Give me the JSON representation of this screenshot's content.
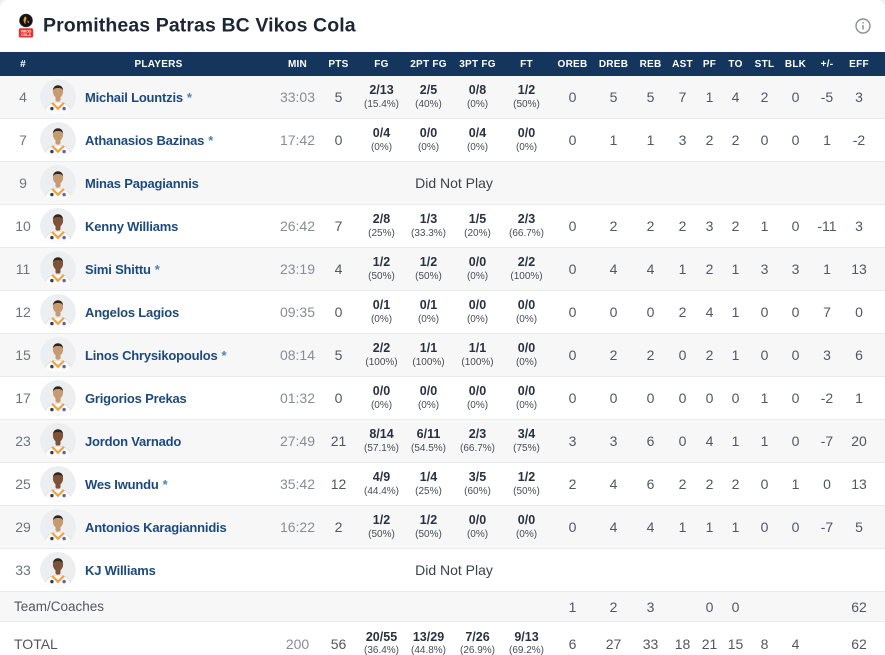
{
  "header": {
    "team_name": "Promitheas Patras BC Vikos Cola",
    "logo_text_line1": "VIKOS",
    "logo_text_line2": "COLA",
    "info_icon": "info-icon"
  },
  "colors": {
    "header_navy": "#15365c",
    "title_text": "#1e2636",
    "player_link": "#1d4a7d",
    "starter_mark": "#4d82b8",
    "stat_gray": "#52575f",
    "fraction_dark": "#2a3140",
    "alt_row_bg": "#f7f7f8",
    "row_border": "#e9eaec",
    "logo_red": "#e6342e",
    "logo_flame_orange": "#f29a1f"
  },
  "table": {
    "columns": [
      "#",
      "PLAYERS",
      "MIN",
      "PTS",
      "FG",
      "2PT FG",
      "3PT FG",
      "FT",
      "OREB",
      "DREB",
      "REB",
      "AST",
      "PF",
      "TO",
      "STL",
      "BLK",
      "+/-",
      "EFF"
    ],
    "did_not_play_label": "Did Not Play",
    "players": [
      {
        "number": "4",
        "name": "Michail Lountzis",
        "star": "*",
        "skin": "#c79b72",
        "dnp": false,
        "min": "33:03",
        "pts": "5",
        "fg": "2/13",
        "fg_pct": "(15.4%)",
        "p2": "2/5",
        "p2_pct": "(40%)",
        "p3": "0/8",
        "p3_pct": "(0%)",
        "ft": "1/2",
        "ft_pct": "(50%)",
        "oreb": "0",
        "dreb": "5",
        "reb": "5",
        "ast": "7",
        "pf": "1",
        "to": "4",
        "stl": "2",
        "blk": "0",
        "pm": "-5",
        "eff": "3"
      },
      {
        "number": "7",
        "name": "Athanasios Bazinas",
        "star": "*",
        "skin": "#c79b72",
        "dnp": false,
        "min": "17:42",
        "pts": "0",
        "fg": "0/4",
        "fg_pct": "(0%)",
        "p2": "0/0",
        "p2_pct": "(0%)",
        "p3": "0/4",
        "p3_pct": "(0%)",
        "ft": "0/0",
        "ft_pct": "(0%)",
        "oreb": "0",
        "dreb": "1",
        "reb": "1",
        "ast": "3",
        "pf": "2",
        "to": "2",
        "stl": "0",
        "blk": "0",
        "pm": "1",
        "eff": "-2"
      },
      {
        "number": "9",
        "name": "Minas Papagiannis",
        "star": "",
        "skin": "#c79b72",
        "dnp": true,
        "min": "",
        "pts": "",
        "fg": "",
        "fg_pct": "",
        "p2": "",
        "p2_pct": "",
        "p3": "",
        "p3_pct": "",
        "ft": "",
        "ft_pct": "",
        "oreb": "",
        "dreb": "",
        "reb": "",
        "ast": "",
        "pf": "",
        "to": "",
        "stl": "",
        "blk": "",
        "pm": "",
        "eff": ""
      },
      {
        "number": "10",
        "name": "Kenny Williams",
        "star": "",
        "skin": "#7d5236",
        "dnp": false,
        "min": "26:42",
        "pts": "7",
        "fg": "2/8",
        "fg_pct": "(25%)",
        "p2": "1/3",
        "p2_pct": "(33.3%)",
        "p3": "1/5",
        "p3_pct": "(20%)",
        "ft": "2/3",
        "ft_pct": "(66.7%)",
        "oreb": "0",
        "dreb": "2",
        "reb": "2",
        "ast": "2",
        "pf": "3",
        "to": "2",
        "stl": "1",
        "blk": "0",
        "pm": "-11",
        "eff": "3"
      },
      {
        "number": "11",
        "name": "Simi Shittu",
        "star": "*",
        "skin": "#7d5236",
        "dnp": false,
        "min": "23:19",
        "pts": "4",
        "fg": "1/2",
        "fg_pct": "(50%)",
        "p2": "1/2",
        "p2_pct": "(50%)",
        "p3": "0/0",
        "p3_pct": "(0%)",
        "ft": "2/2",
        "ft_pct": "(100%)",
        "oreb": "0",
        "dreb": "4",
        "reb": "4",
        "ast": "1",
        "pf": "2",
        "to": "1",
        "stl": "3",
        "blk": "3",
        "pm": "1",
        "eff": "13"
      },
      {
        "number": "12",
        "name": "Angelos Lagios",
        "star": "",
        "skin": "#c79b72",
        "dnp": false,
        "min": "09:35",
        "pts": "0",
        "fg": "0/1",
        "fg_pct": "(0%)",
        "p2": "0/1",
        "p2_pct": "(0%)",
        "p3": "0/0",
        "p3_pct": "(0%)",
        "ft": "0/0",
        "ft_pct": "(0%)",
        "oreb": "0",
        "dreb": "0",
        "reb": "0",
        "ast": "2",
        "pf": "4",
        "to": "1",
        "stl": "0",
        "blk": "0",
        "pm": "7",
        "eff": "0"
      },
      {
        "number": "15",
        "name": "Linos Chrysikopoulos",
        "star": "*",
        "skin": "#c79b72",
        "dnp": false,
        "min": "08:14",
        "pts": "5",
        "fg": "2/2",
        "fg_pct": "(100%)",
        "p2": "1/1",
        "p2_pct": "(100%)",
        "p3": "1/1",
        "p3_pct": "(100%)",
        "ft": "0/0",
        "ft_pct": "(0%)",
        "oreb": "0",
        "dreb": "2",
        "reb": "2",
        "ast": "0",
        "pf": "2",
        "to": "1",
        "stl": "0",
        "blk": "0",
        "pm": "3",
        "eff": "6"
      },
      {
        "number": "17",
        "name": "Grigorios Prekas",
        "star": "",
        "skin": "#c79b72",
        "dnp": false,
        "min": "01:32",
        "pts": "0",
        "fg": "0/0",
        "fg_pct": "(0%)",
        "p2": "0/0",
        "p2_pct": "(0%)",
        "p3": "0/0",
        "p3_pct": "(0%)",
        "ft": "0/0",
        "ft_pct": "(0%)",
        "oreb": "0",
        "dreb": "0",
        "reb": "0",
        "ast": "0",
        "pf": "0",
        "to": "0",
        "stl": "1",
        "blk": "0",
        "pm": "-2",
        "eff": "1"
      },
      {
        "number": "23",
        "name": "Jordon Varnado",
        "star": "",
        "skin": "#7d5236",
        "dnp": false,
        "min": "27:49",
        "pts": "21",
        "fg": "8/14",
        "fg_pct": "(57.1%)",
        "p2": "6/11",
        "p2_pct": "(54.5%)",
        "p3": "2/3",
        "p3_pct": "(66.7%)",
        "ft": "3/4",
        "ft_pct": "(75%)",
        "oreb": "3",
        "dreb": "3",
        "reb": "6",
        "ast": "0",
        "pf": "4",
        "to": "1",
        "stl": "1",
        "blk": "0",
        "pm": "-7",
        "eff": "20"
      },
      {
        "number": "25",
        "name": "Wes Iwundu",
        "star": "*",
        "skin": "#7d5236",
        "dnp": false,
        "min": "35:42",
        "pts": "12",
        "fg": "4/9",
        "fg_pct": "(44.4%)",
        "p2": "1/4",
        "p2_pct": "(25%)",
        "p3": "3/5",
        "p3_pct": "(60%)",
        "ft": "1/2",
        "ft_pct": "(50%)",
        "oreb": "2",
        "dreb": "4",
        "reb": "6",
        "ast": "2",
        "pf": "2",
        "to": "2",
        "stl": "0",
        "blk": "1",
        "pm": "0",
        "eff": "13"
      },
      {
        "number": "29",
        "name": "Antonios Karagiannidis",
        "star": "",
        "skin": "#c79b72",
        "dnp": false,
        "min": "16:22",
        "pts": "2",
        "fg": "1/2",
        "fg_pct": "(50%)",
        "p2": "1/2",
        "p2_pct": "(50%)",
        "p3": "0/0",
        "p3_pct": "(0%)",
        "ft": "0/0",
        "ft_pct": "(0%)",
        "oreb": "0",
        "dreb": "4",
        "reb": "4",
        "ast": "1",
        "pf": "1",
        "to": "1",
        "stl": "0",
        "blk": "0",
        "pm": "-7",
        "eff": "5"
      },
      {
        "number": "33",
        "name": "KJ Williams",
        "star": "",
        "skin": "#7d5236",
        "dnp": true,
        "min": "",
        "pts": "",
        "fg": "",
        "fg_pct": "",
        "p2": "",
        "p2_pct": "",
        "p3": "",
        "p3_pct": "",
        "ft": "",
        "ft_pct": "",
        "oreb": "",
        "dreb": "",
        "reb": "",
        "ast": "",
        "pf": "",
        "to": "",
        "stl": "",
        "blk": "",
        "pm": "",
        "eff": ""
      }
    ],
    "team_row": {
      "label": "Team/Coaches",
      "oreb": "1",
      "dreb": "2",
      "reb": "3",
      "ast": "",
      "pf": "0",
      "to": "0",
      "stl": "",
      "blk": "",
      "pm": "",
      "eff": "62"
    },
    "total_row": {
      "label": "TOTAL",
      "min": "200",
      "pts": "56",
      "fg": "20/55",
      "fg_pct": "(36.4%)",
      "p2": "13/29",
      "p2_pct": "(44.8%)",
      "p3": "7/26",
      "p3_pct": "(26.9%)",
      "ft": "9/13",
      "ft_pct": "(69.2%)",
      "oreb": "6",
      "dreb": "27",
      "reb": "33",
      "ast": "18",
      "pf": "21",
      "to": "15",
      "stl": "8",
      "blk": "4",
      "pm": "",
      "eff": "62"
    }
  }
}
